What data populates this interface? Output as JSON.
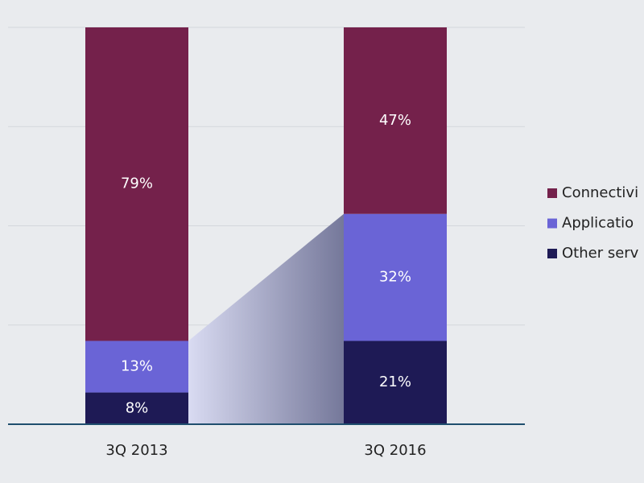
{
  "chart_data": {
    "type": "stacked_bar",
    "categories": [
      "3Q 2013",
      "3Q 2016"
    ],
    "series": [
      {
        "name": "Connectivi",
        "color": "#74214b",
        "values": [
          79,
          47
        ],
        "value_labels": [
          "79%",
          "47%"
        ]
      },
      {
        "name": "Applicatio",
        "color": "#6a64d6",
        "values": [
          13,
          32
        ],
        "value_labels": [
          "13%",
          "32%"
        ]
      },
      {
        "name": "Other serv",
        "color": "#1e1a55",
        "values": [
          8,
          21
        ],
        "value_labels": [
          "8%",
          "21%"
        ]
      }
    ],
    "ylim": [
      0,
      100
    ],
    "yticks": [
      0,
      25,
      50,
      75,
      100
    ],
    "grid": true,
    "legend": "right"
  }
}
